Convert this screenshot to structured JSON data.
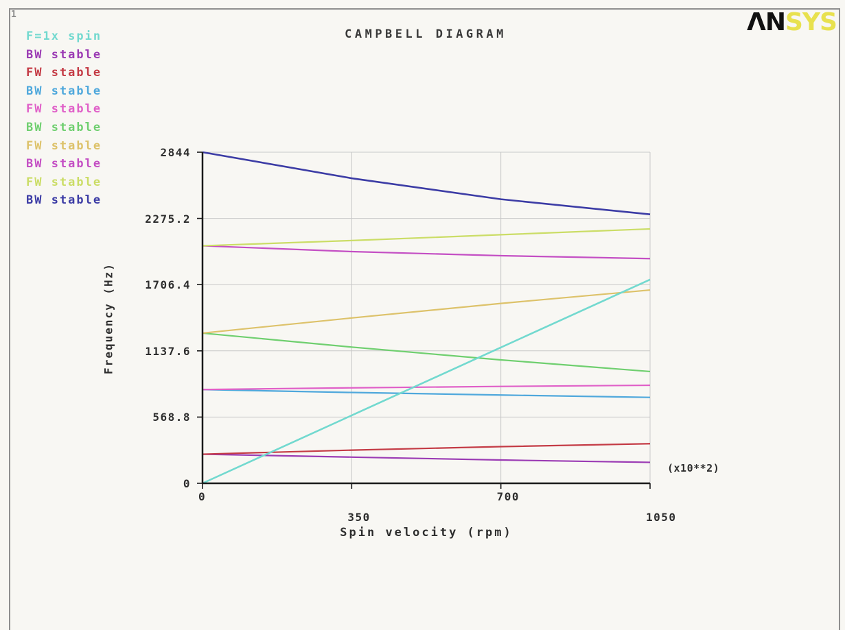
{
  "window": {
    "corner_label": "1"
  },
  "header": {
    "title": "CAMPBELL DIAGRAM",
    "logo": {
      "left": "ΛN",
      "right": "SYS",
      "black": "#111111",
      "yellow": "#e8e14e"
    }
  },
  "legend": {
    "items": [
      {
        "label": "F=1x spin",
        "color": "#72d9cf"
      },
      {
        "label": "BW stable",
        "color": "#9b3bb4"
      },
      {
        "label": "FW stable",
        "color": "#c43b45"
      },
      {
        "label": "BW stable",
        "color": "#4fa8dc"
      },
      {
        "label": "FW stable",
        "color": "#e060c8"
      },
      {
        "label": "BW stable",
        "color": "#6fcf6f"
      },
      {
        "label": "FW stable",
        "color": "#ddc26a"
      },
      {
        "label": "BW stable",
        "color": "#c44fc4"
      },
      {
        "label": "FW stable",
        "color": "#cbdd66"
      },
      {
        "label": "BW stable",
        "color": "#3c3ca5"
      }
    ]
  },
  "chart_data": {
    "type": "line",
    "title": "CAMPBELL DIAGRAM",
    "xlabel": "Spin velocity (rpm)",
    "ylabel": "Frequency (Hz)",
    "x_unit_note": "(x10**2)",
    "xlim": [
      0,
      1050
    ],
    "ylim": [
      0,
      2844
    ],
    "xticks": [
      0,
      350,
      700,
      1050
    ],
    "yticks": [
      0,
      568.8,
      1137.6,
      1706.4,
      2275.2,
      2844
    ],
    "grid": true,
    "legend_position": "top-left-outside",
    "x": [
      0,
      350,
      700,
      1050
    ],
    "series": [
      {
        "name": "F=1x spin",
        "color": "#72d9cf",
        "width": 2.6,
        "values": [
          0,
          583,
          1167,
          1750
        ]
      },
      {
        "name": "BW stable",
        "color": "#9b3bb4",
        "width": 2.2,
        "values": [
          250,
          225,
          200,
          180
        ]
      },
      {
        "name": "FW stable",
        "color": "#c43b45",
        "width": 2.2,
        "values": [
          250,
          285,
          315,
          340
        ]
      },
      {
        "name": "BW stable",
        "color": "#4fa8dc",
        "width": 2.2,
        "values": [
          805,
          780,
          758,
          738
        ]
      },
      {
        "name": "FW stable",
        "color": "#e060c8",
        "width": 2.2,
        "values": [
          805,
          820,
          832,
          842
        ]
      },
      {
        "name": "BW stable",
        "color": "#6fcf6f",
        "width": 2.2,
        "values": [
          1290,
          1170,
          1060,
          960
        ]
      },
      {
        "name": "FW stable",
        "color": "#ddc26a",
        "width": 2.2,
        "values": [
          1290,
          1420,
          1545,
          1660
        ]
      },
      {
        "name": "BW stable",
        "color": "#c44fc4",
        "width": 2.2,
        "values": [
          2040,
          1990,
          1955,
          1930
        ]
      },
      {
        "name": "FW stable",
        "color": "#cbdd66",
        "width": 2.2,
        "values": [
          2040,
          2085,
          2135,
          2185
        ]
      },
      {
        "name": "BW stable",
        "color": "#3c3ca5",
        "width": 2.6,
        "values": [
          2844,
          2620,
          2440,
          2310
        ]
      }
    ]
  },
  "colors": {
    "background": "#f8f7f3",
    "frame": "#8f8f8f",
    "axis": "#1a1a1a",
    "grid": "#c8c8c8",
    "text": "#2e2e2e"
  }
}
